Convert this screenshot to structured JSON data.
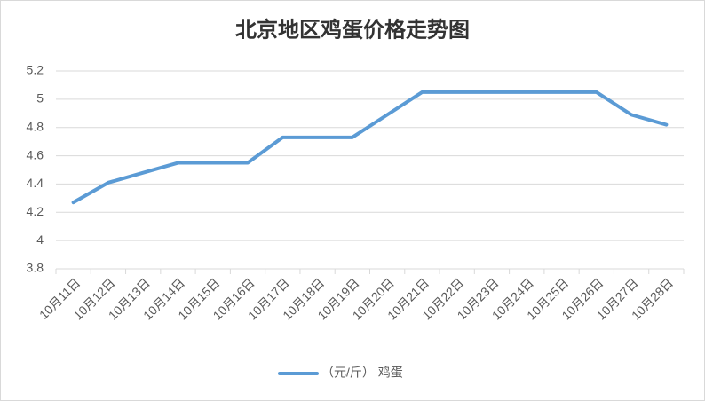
{
  "chart_data": {
    "type": "line",
    "title": "北京地区鸡蛋价格走势图",
    "categories": [
      "10月11日",
      "10月12日",
      "10月13日",
      "10月14日",
      "10月15日",
      "10月16日",
      "10月17日",
      "10月18日",
      "10月19日",
      "10月20日",
      "10月21日",
      "10月22日",
      "10月23日",
      "10月24日",
      "10月25日",
      "10月26日",
      "10月27日",
      "10月28日"
    ],
    "series": [
      {
        "name": "（元/斤） 鸡蛋",
        "color": "#5b9bd5",
        "values": [
          4.27,
          4.41,
          4.48,
          4.55,
          4.55,
          4.55,
          4.73,
          4.73,
          4.73,
          4.89,
          5.05,
          5.05,
          5.05,
          5.05,
          5.05,
          5.05,
          4.89,
          4.82
        ]
      }
    ],
    "ylim": [
      3.8,
      5.2
    ],
    "yticks": [
      3.8,
      4,
      4.2,
      4.4,
      4.6,
      4.8,
      5,
      5.2
    ],
    "grid": true,
    "legend": "bottom"
  }
}
